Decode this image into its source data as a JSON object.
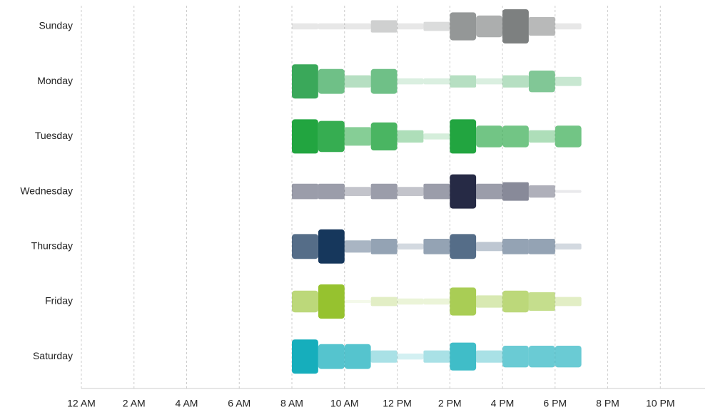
{
  "chart_data": {
    "type": "punchcard",
    "categories": [
      "Sunday",
      "Monday",
      "Tuesday",
      "Wednesday",
      "Thursday",
      "Friday",
      "Saturday"
    ],
    "x": [
      8,
      9,
      10,
      11,
      12,
      13,
      14,
      15,
      16,
      17,
      18
    ],
    "xlim": [
      0,
      24
    ],
    "xticks": [
      {
        "value": 0,
        "label": "12 AM"
      },
      {
        "value": 2,
        "label": "2 AM"
      },
      {
        "value": 4,
        "label": "4 AM"
      },
      {
        "value": 6,
        "label": "6 AM"
      },
      {
        "value": 8,
        "label": "8 AM"
      },
      {
        "value": 10,
        "label": "10 AM"
      },
      {
        "value": 12,
        "label": "12 PM"
      },
      {
        "value": 14,
        "label": "2 PM"
      },
      {
        "value": 16,
        "label": "4 PM"
      },
      {
        "value": 18,
        "label": "6 PM"
      },
      {
        "value": 20,
        "label": "8 PM"
      },
      {
        "value": 22,
        "label": "10 PM"
      }
    ],
    "grid": true,
    "series": [
      {
        "name": "Sunday",
        "color": "#7d8080",
        "values": [
          1,
          1,
          1,
          3,
          1,
          2,
          8,
          6,
          10,
          5,
          1
        ]
      },
      {
        "name": "Monday",
        "color": "#3aa85a",
        "values": [
          10,
          7,
          3,
          7,
          1,
          1,
          3,
          1,
          3,
          6,
          2
        ]
      },
      {
        "name": "Tuesday",
        "color": "#22a540",
        "values": [
          10,
          9,
          5,
          8,
          3,
          1,
          10,
          6,
          6,
          3,
          6
        ]
      },
      {
        "name": "Wednesday",
        "color": "#262a45",
        "values": [
          4,
          4,
          2,
          4,
          2,
          4,
          10,
          4,
          5,
          3,
          0
        ]
      },
      {
        "name": "Thursday",
        "color": "#16375c",
        "values": [
          7,
          10,
          3,
          4,
          1,
          4,
          7,
          2,
          4,
          4,
          1
        ]
      },
      {
        "name": "Friday",
        "color": "#96c22f",
        "values": [
          6,
          10,
          0,
          2,
          1,
          1,
          8,
          3,
          6,
          5,
          2
        ]
      },
      {
        "name": "Saturday",
        "color": "#16aebc",
        "values": [
          10,
          7,
          7,
          3,
          1,
          3,
          8,
          3,
          6,
          6,
          6
        ]
      }
    ]
  }
}
